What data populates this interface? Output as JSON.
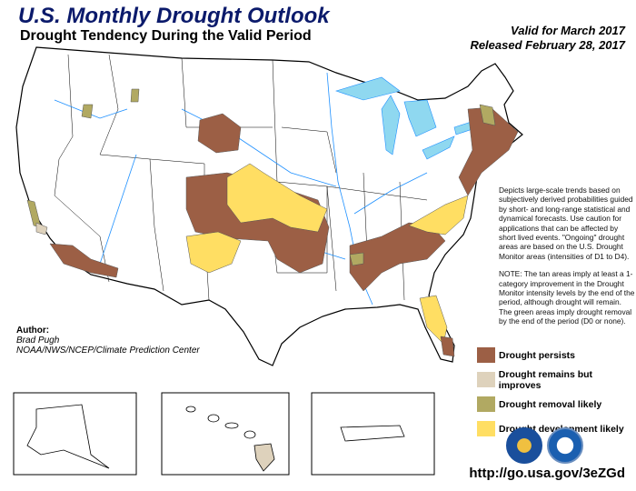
{
  "header": {
    "title": "U.S. Monthly Drought Outlook",
    "subtitle": "Drought Tendency During the Valid Period",
    "valid": "Valid for March 2017",
    "released": "Released February 28, 2017"
  },
  "description": {
    "paragraph1": "Depicts large-scale trends based on subjectively derived probabilities guided by short- and long-range statistical and dynamical forecasts. Use caution for applications that can be affected by short lived events. \"Ongoing\" drought areas are based on the U.S. Drought Monitor areas (intensities of D1 to D4).",
    "paragraph2": "NOTE: The tan areas imply at least a 1-category improvement in the Drought Monitor intensity levels by the end of the period, although drought will remain. The green areas imply drought removal by the end of the period (D0 or none)."
  },
  "legend": [
    {
      "label": "Drought persists",
      "color": "#9c5f45"
    },
    {
      "label": "Drought remains but improves",
      "color": "#ded2bc"
    },
    {
      "label": "Drought removal likely",
      "color": "#b1a962"
    },
    {
      "label": "Drought development likely",
      "color": "#ffde63"
    }
  ],
  "author": {
    "heading": "Author:",
    "name": "Brad Pugh",
    "org": "NOAA/NWS/NCEP/Climate Prediction Center"
  },
  "url": "http://go.usa.gov/3eZGd",
  "colors": {
    "water": "#8fd8f0",
    "river": "#1e90ff",
    "title": "#0b1a6b"
  },
  "insets": [
    "Alaska",
    "Hawaii",
    "Puerto Rico"
  ],
  "logos": [
    "noaa-logo",
    "nws-logo"
  ]
}
